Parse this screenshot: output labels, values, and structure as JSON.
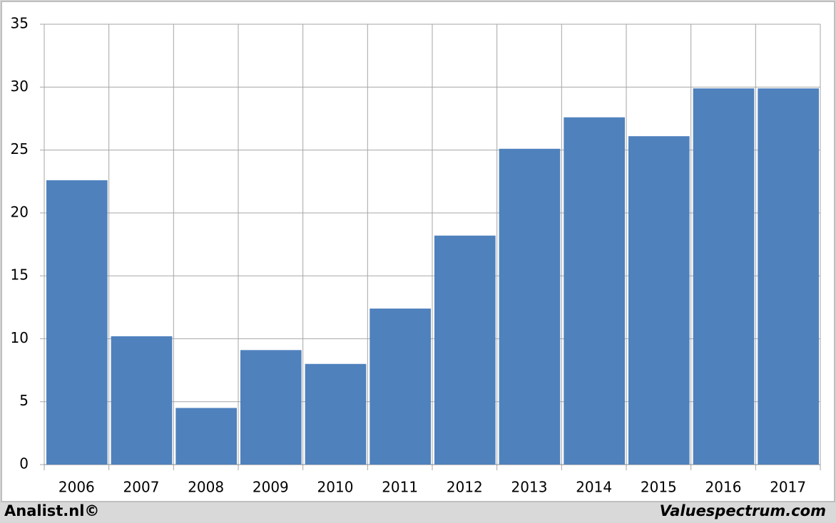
{
  "chart_data": {
    "type": "bar",
    "categories": [
      "2006",
      "2007",
      "2008",
      "2009",
      "2010",
      "2011",
      "2012",
      "2013",
      "2014",
      "2015",
      "2016",
      "2017"
    ],
    "values": [
      22.6,
      10.2,
      4.5,
      9.1,
      8.0,
      12.4,
      18.2,
      25.1,
      27.6,
      26.1,
      29.9,
      29.9
    ],
    "color": "#4f81bd",
    "ylim": [
      0,
      35
    ],
    "yticks": [
      0,
      5,
      10,
      15,
      20,
      25,
      30,
      35
    ],
    "grid": true
  },
  "footer": {
    "left": "Analist.nl©",
    "right": "Valuespectrum.com"
  }
}
